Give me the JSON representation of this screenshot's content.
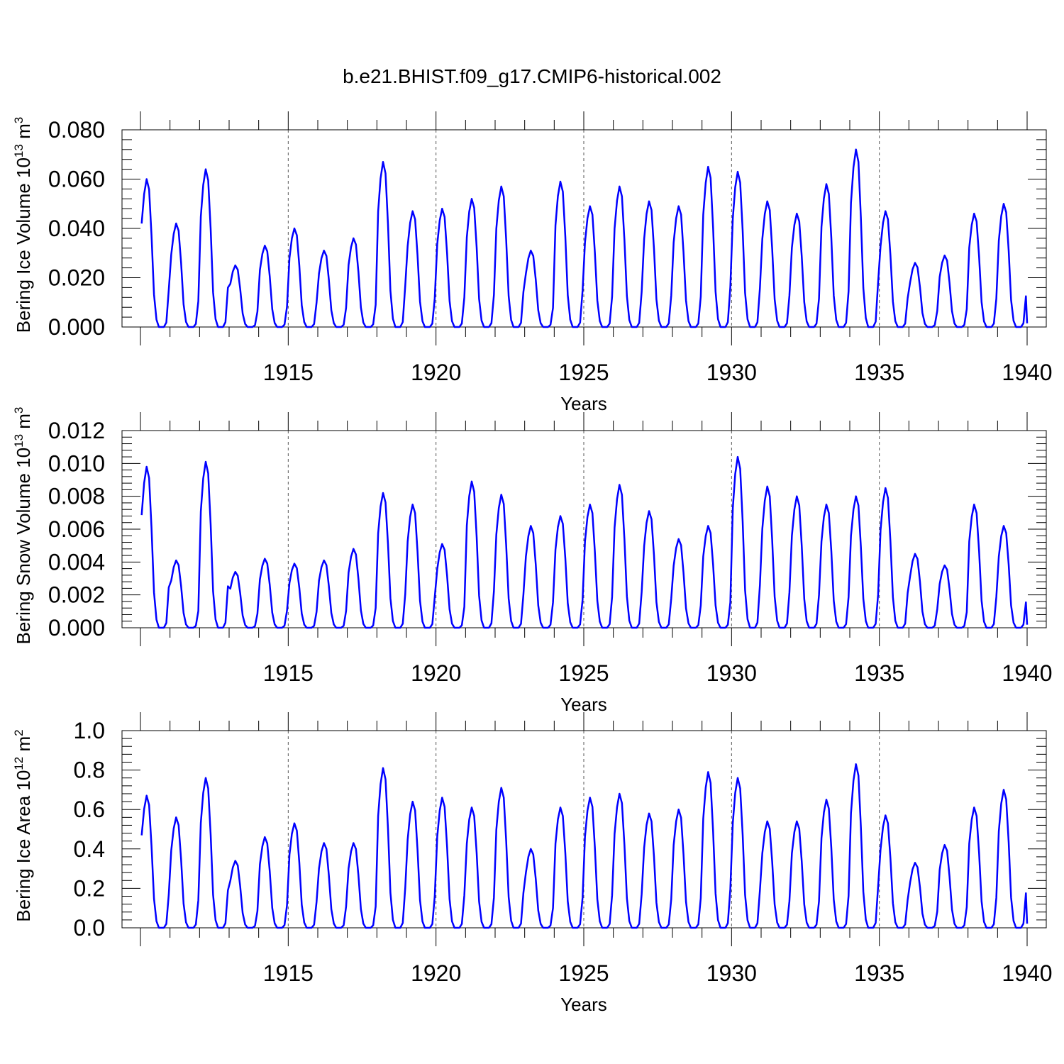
{
  "title": "b.e21.BHIST.f09_g17.CMIP6-historical.002",
  "colors": {
    "line": "#0000ff",
    "axes": "#000000",
    "grid": "#555555"
  },
  "chart_data": [
    {
      "type": "line",
      "ylabel_main": "Bering Ice Volume 10",
      "ylabel_exp1": "13",
      "ylabel_unit": " m",
      "ylabel_exp2": "3",
      "xlabel": "Years",
      "xlim": [
        1910,
        1940
      ],
      "ylim": [
        0,
        0.08
      ],
      "ytick_values": [
        0,
        0.02,
        0.04,
        0.06,
        0.08
      ],
      "ytick_labels": [
        "0.000",
        "0.020",
        "0.040",
        "0.060",
        "0.080"
      ],
      "xtick_values": [
        1915,
        1920,
        1925,
        1930,
        1935,
        1940
      ],
      "xtick_labels": [
        "1915",
        "1920",
        "1925",
        "1930",
        "1935",
        "1940"
      ],
      "peaks": [
        0.06,
        0.042,
        0.064,
        0.025,
        0.033,
        0.04,
        0.031,
        0.036,
        0.067,
        0.047,
        0.048,
        0.052,
        0.057,
        0.031,
        0.059,
        0.049,
        0.057,
        0.051,
        0.049,
        0.065,
        0.063,
        0.051,
        0.046,
        0.058,
        0.072,
        0.047,
        0.026,
        0.029,
        0.046,
        0.05
      ]
    },
    {
      "type": "line",
      "ylabel_main": "Bering Snow Volume 10",
      "ylabel_exp1": "13",
      "ylabel_unit": " m",
      "ylabel_exp2": "3",
      "xlabel": "Years",
      "xlim": [
        1910,
        1940
      ],
      "ylim": [
        0,
        0.012
      ],
      "ytick_values": [
        0,
        0.002,
        0.004,
        0.006,
        0.008,
        0.01,
        0.012
      ],
      "ytick_labels": [
        "0.000",
        "0.002",
        "0.004",
        "0.006",
        "0.008",
        "0.010",
        "0.012"
      ],
      "xtick_values": [
        1915,
        1920,
        1925,
        1930,
        1935,
        1940
      ],
      "xtick_labels": [
        "1915",
        "1920",
        "1925",
        "1930",
        "1935",
        "1940"
      ],
      "peaks": [
        0.0098,
        0.0041,
        0.0101,
        0.0034,
        0.0042,
        0.0039,
        0.0041,
        0.0048,
        0.0082,
        0.0075,
        0.0051,
        0.0089,
        0.0081,
        0.0062,
        0.0068,
        0.0075,
        0.0087,
        0.0071,
        0.0054,
        0.0062,
        0.0104,
        0.0086,
        0.008,
        0.0075,
        0.008,
        0.0085,
        0.0045,
        0.0038,
        0.0075,
        0.0062
      ]
    },
    {
      "type": "line",
      "ylabel_main": "Bering Ice Area 10",
      "ylabel_exp1": "12",
      "ylabel_unit": " m",
      "ylabel_exp2": "2",
      "xlabel": "Years",
      "xlim": [
        1910,
        1940
      ],
      "ylim": [
        0,
        1.0
      ],
      "ytick_values": [
        0,
        0.2,
        0.4,
        0.6,
        0.8,
        1.0
      ],
      "ytick_labels": [
        "0.0",
        "0.2",
        "0.4",
        "0.6",
        "0.8",
        "1.0"
      ],
      "xtick_values": [
        1915,
        1920,
        1925,
        1930,
        1935,
        1940
      ],
      "xtick_labels": [
        "1915",
        "1920",
        "1925",
        "1930",
        "1935",
        "1940"
      ],
      "peaks": [
        0.67,
        0.56,
        0.76,
        0.34,
        0.46,
        0.53,
        0.43,
        0.43,
        0.81,
        0.64,
        0.66,
        0.61,
        0.71,
        0.4,
        0.61,
        0.66,
        0.68,
        0.58,
        0.6,
        0.79,
        0.76,
        0.54,
        0.54,
        0.65,
        0.83,
        0.57,
        0.33,
        0.42,
        0.61,
        0.7
      ]
    }
  ]
}
